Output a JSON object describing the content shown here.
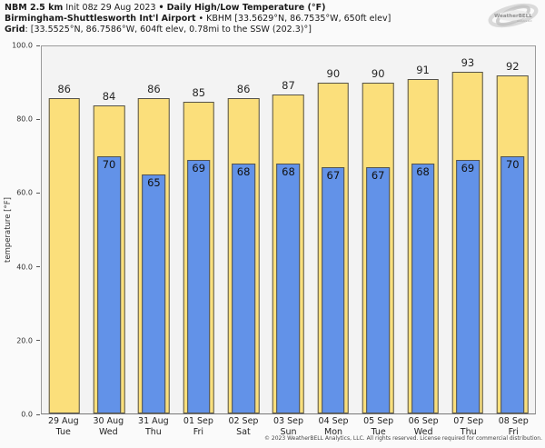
{
  "title": {
    "model": "NBM 2.5 km",
    "init": "Init 08z 29 Aug 2023",
    "bullet": "•",
    "product": "Daily High/Low Temperature (°F)",
    "station_name": "Birmingham-Shuttlesworth Int'l Airport",
    "station_bullet": "•",
    "station_info": "KBHM [33.5629°N, 86.7535°W, 650ft elev]",
    "grid_label": "Grid",
    "grid_info": ": [33.5525°N, 86.7586°W, 604ft elev, 0.78mi to the SSW (202.3)°]"
  },
  "logo": {
    "brand": "WeatherBELL",
    "sub": "Analytics LLC"
  },
  "chart_data": {
    "type": "bar",
    "title": "NBM 2.5 km Daily High/Low Temperature (°F) — KBHM Birmingham-Shuttlesworth Int'l Airport",
    "ylabel": "temperature [°F]",
    "xlabel": "",
    "ylim": [
      0,
      100
    ],
    "yticks": [
      0,
      20,
      40,
      60,
      80,
      100
    ],
    "ytick_labels": [
      "0.0",
      "20.0",
      "40.0",
      "60.0",
      "80.0",
      "100.0"
    ],
    "grid": false,
    "legend": "none",
    "plot_bg": "#F3F3F3",
    "bar_border_color": "#54524A",
    "categories": [
      {
        "date": "29 Aug",
        "day": "Tue"
      },
      {
        "date": "30 Aug",
        "day": "Wed"
      },
      {
        "date": "31 Aug",
        "day": "Thu"
      },
      {
        "date": "01 Sep",
        "day": "Fri"
      },
      {
        "date": "02 Sep",
        "day": "Sat"
      },
      {
        "date": "03 Sep",
        "day": "Sun"
      },
      {
        "date": "04 Sep",
        "day": "Mon"
      },
      {
        "date": "05 Sep",
        "day": "Tue"
      },
      {
        "date": "06 Sep",
        "day": "Wed"
      },
      {
        "date": "07 Sep",
        "day": "Thu"
      },
      {
        "date": "08 Sep",
        "day": "Fri"
      }
    ],
    "series": [
      {
        "name": "Daily High",
        "color": "#FBDF7B",
        "values": [
          86,
          84,
          86,
          85,
          86,
          87,
          90,
          90,
          91,
          93,
          92
        ]
      },
      {
        "name": "Daily Low",
        "color": "#6292E8",
        "values": [
          null,
          70,
          65,
          69,
          68,
          68,
          67,
          67,
          68,
          69,
          70
        ]
      }
    ]
  },
  "footer": {
    "copyright": "© 2023 WeatherBELL Analytics, LLC. All rights reserved. License required for commercial distribution."
  }
}
